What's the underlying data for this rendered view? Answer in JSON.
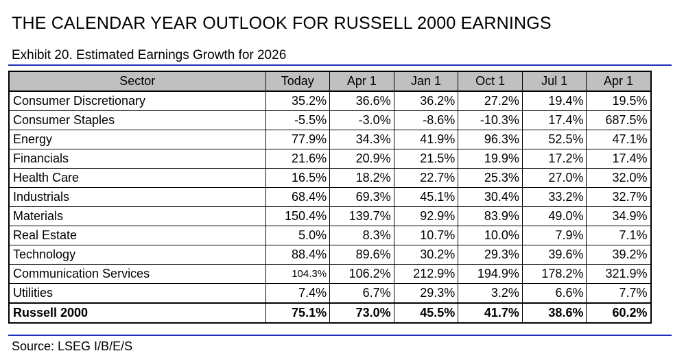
{
  "title": "THE CALENDAR YEAR OUTLOOK FOR RUSSELL 2000 EARNINGS",
  "subtitle": "Exhibit 20. Estimated Earnings Growth for 2026",
  "source": "Source: LSEG I/B/E/S",
  "colors": {
    "header_bg": "#c0c0c0",
    "rule": "#1f2fb8"
  },
  "table": {
    "headers": [
      "Sector",
      "Today",
      "Apr 1",
      "Jan 1",
      "Oct 1",
      "Jul 1",
      "Apr 1"
    ],
    "rows": [
      {
        "sector": "Consumer Discretionary",
        "values": [
          "35.2%",
          "36.6%",
          "36.2%",
          "27.2%",
          "19.4%",
          "19.5%"
        ]
      },
      {
        "sector": "Consumer Staples",
        "values": [
          "-5.5%",
          "-3.0%",
          "-8.6%",
          "-10.3%",
          "17.4%",
          "687.5%"
        ]
      },
      {
        "sector": "Energy",
        "values": [
          "77.9%",
          "34.3%",
          "41.9%",
          "96.3%",
          "52.5%",
          "47.1%"
        ]
      },
      {
        "sector": "Financials",
        "values": [
          "21.6%",
          "20.9%",
          "21.5%",
          "19.9%",
          "17.2%",
          "17.4%"
        ]
      },
      {
        "sector": "Health Care",
        "values": [
          "16.5%",
          "18.2%",
          "22.7%",
          "25.3%",
          "27.0%",
          "32.0%"
        ]
      },
      {
        "sector": "Industrials",
        "values": [
          "68.4%",
          "69.3%",
          "45.1%",
          "30.4%",
          "33.2%",
          "32.7%"
        ]
      },
      {
        "sector": "Materials",
        "values": [
          "150.4%",
          "139.7%",
          "92.9%",
          "83.9%",
          "49.0%",
          "34.9%"
        ]
      },
      {
        "sector": "Real Estate",
        "values": [
          "5.0%",
          "8.3%",
          "10.7%",
          "10.0%",
          "7.9%",
          "7.1%"
        ]
      },
      {
        "sector": "Technology",
        "values": [
          "88.4%",
          "89.6%",
          "30.2%",
          "29.3%",
          "39.6%",
          "39.2%"
        ]
      },
      {
        "sector": "Communication Services",
        "values": [
          "104.3%",
          "106.2%",
          "212.9%",
          "194.9%",
          "178.2%",
          "321.9%"
        ]
      },
      {
        "sector": "Utilities",
        "values": [
          "7.4%",
          "6.7%",
          "29.3%",
          "3.2%",
          "6.6%",
          "7.7%"
        ]
      }
    ],
    "total": {
      "sector": "Russell 2000",
      "values": [
        "75.1%",
        "73.0%",
        "45.5%",
        "41.7%",
        "38.6%",
        "60.2%"
      ]
    }
  }
}
